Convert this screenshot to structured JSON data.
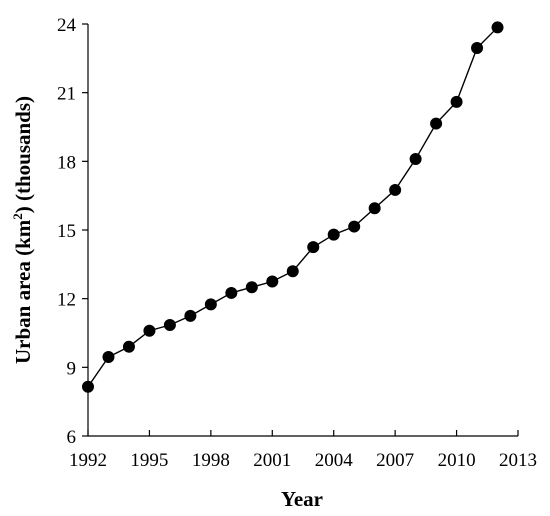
{
  "chart_data": {
    "type": "line",
    "title": "",
    "xlabel": "Year",
    "ylabel": {
      "prefix": "Urban area (km",
      "superscript": "2",
      "suffix": ") (thousands)"
    },
    "xlim": [
      1992,
      2013
    ],
    "ylim": [
      6,
      24
    ],
    "xticks": [
      "1992",
      "1995",
      "1998",
      "2001",
      "2004",
      "2007",
      "2010",
      "2013"
    ],
    "yticks": [
      "6",
      "9",
      "12",
      "15",
      "18",
      "21",
      "24"
    ],
    "grid": false,
    "marker": "filled-circle",
    "line_color": "#000000",
    "series": [
      {
        "x": [
          1992,
          1993,
          1994,
          1995,
          1996,
          1997,
          1998,
          1999,
          2000,
          2001,
          2002,
          2003,
          2004,
          2005,
          2006,
          2007,
          2008,
          2009,
          2010,
          2011,
          2012
        ],
        "values": [
          8.15,
          9.45,
          9.9,
          10.6,
          10.85,
          11.25,
          11.75,
          12.25,
          12.5,
          12.75,
          13.2,
          14.25,
          14.8,
          15.15,
          15.95,
          16.75,
          18.1,
          19.65,
          20.6,
          22.95,
          23.85
        ]
      }
    ]
  }
}
